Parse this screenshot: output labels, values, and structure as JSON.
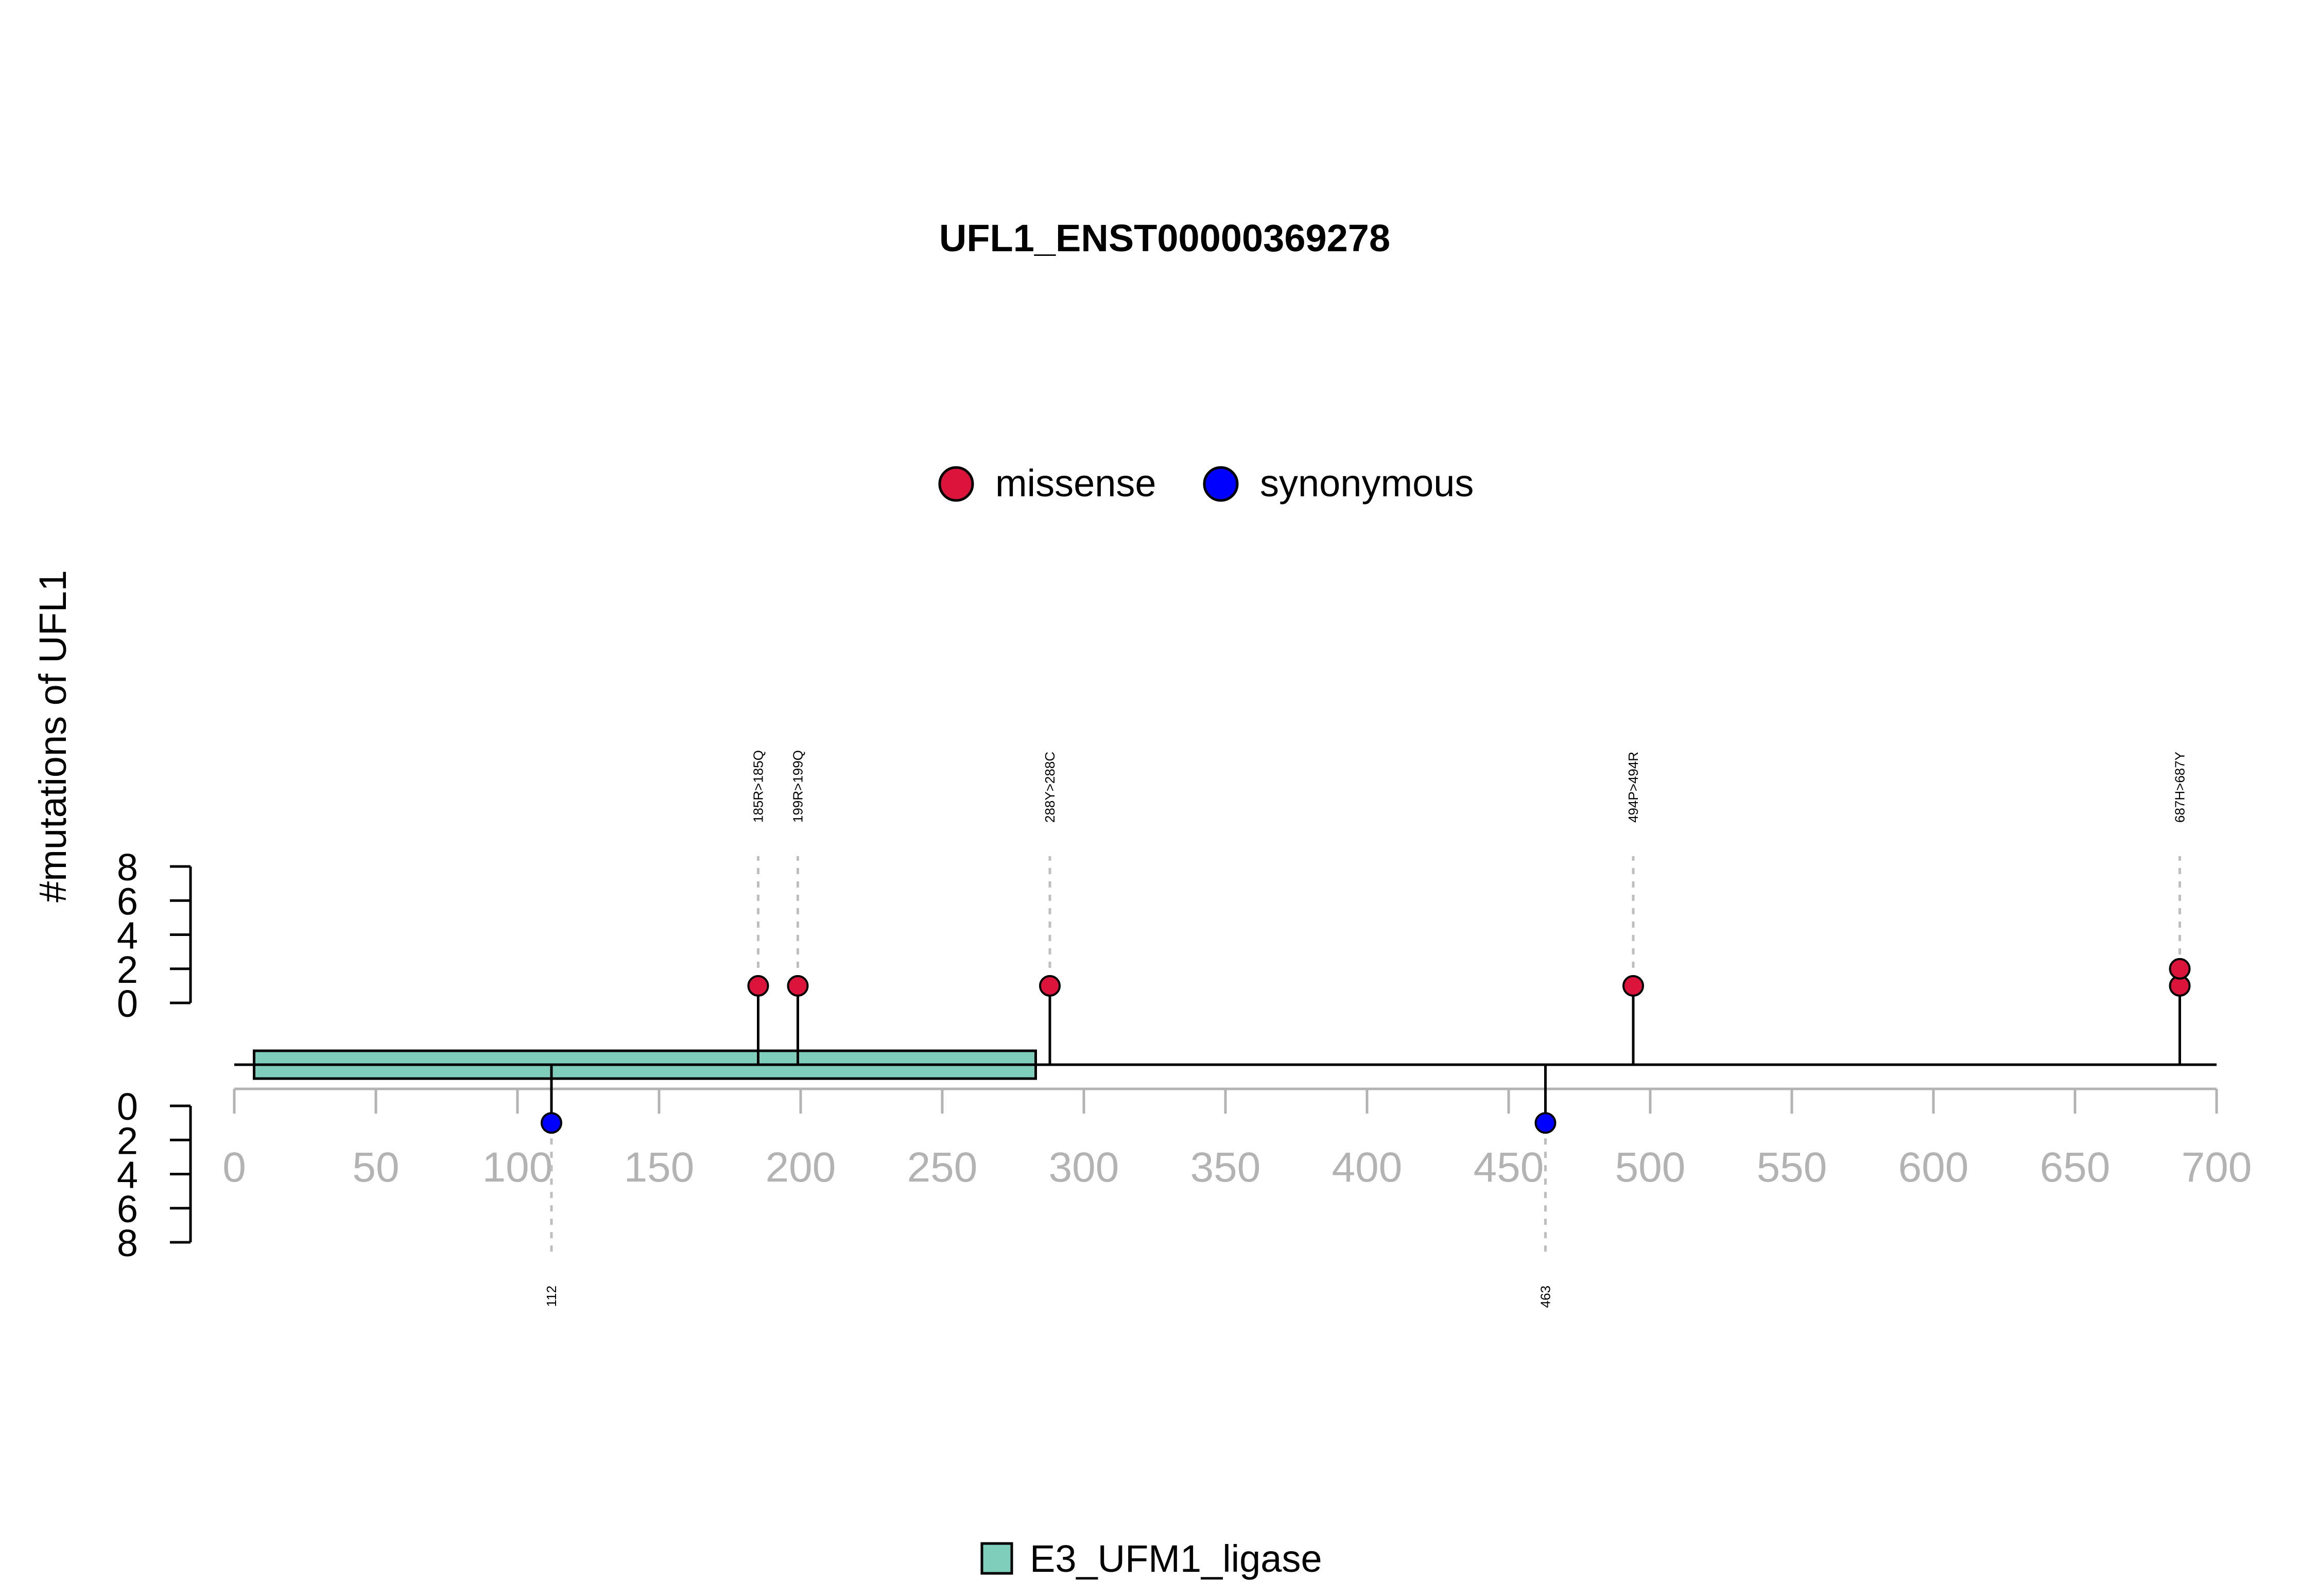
{
  "chart_data": {
    "type": "lollipop",
    "title": "UFL1_ENST00000369278",
    "ylabel": "#mutations of UFL1",
    "legend": {
      "placement": "top-center",
      "entries": [
        {
          "name": "missense",
          "color": "#DC143C"
        },
        {
          "name": "synonymous",
          "color": "#0000FF"
        }
      ]
    },
    "xlim": [
      0,
      700
    ],
    "x_ticks": [
      0,
      50,
      100,
      150,
      200,
      250,
      300,
      350,
      400,
      450,
      500,
      550,
      600,
      650,
      700
    ],
    "y_top_ticks": [
      "8",
      "6",
      "4",
      "2",
      "0"
    ],
    "y_bottom_ticks": [
      "0",
      "2",
      "4",
      "6",
      "8"
    ],
    "ylim": [
      0,
      8
    ],
    "protein_length": 700,
    "domains": [
      {
        "name": "E3_UFM1_ligase",
        "start": 7,
        "end": 283,
        "color": "#7FCDBB"
      }
    ],
    "domain_legend": {
      "placement": "bottom-center"
    },
    "mutations_top": [
      {
        "position": 185,
        "label": "185R>185Q",
        "type": "missense",
        "count": 1
      },
      {
        "position": 199,
        "label": "199R>199Q",
        "type": "missense",
        "count": 1
      },
      {
        "position": 288,
        "label": "288Y>288C",
        "type": "missense",
        "count": 1
      },
      {
        "position": 494,
        "label": "494P>494R",
        "type": "missense",
        "count": 1
      },
      {
        "position": 687,
        "label": "687H>687Y",
        "type": "missense",
        "count": 2
      }
    ],
    "mutations_bottom": [
      {
        "position": 112,
        "label": "112",
        "type": "synonymous",
        "count": 1
      },
      {
        "position": 463,
        "label": "463",
        "type": "synonymous",
        "count": 1
      }
    ],
    "colors": {
      "missense": "#DC143C",
      "synonymous": "#0000FF",
      "axis_gray": "#B3B3B3",
      "guide_gray": "#BEBEBE"
    }
  }
}
